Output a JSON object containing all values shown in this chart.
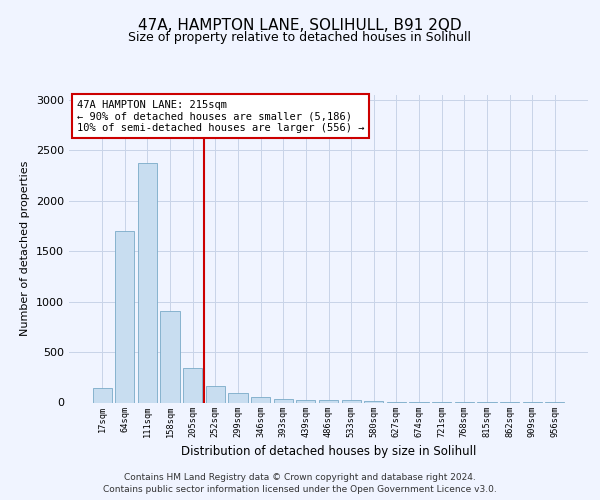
{
  "title": "47A, HAMPTON LANE, SOLIHULL, B91 2QD",
  "subtitle": "Size of property relative to detached houses in Solihull",
  "xlabel": "Distribution of detached houses by size in Solihull",
  "ylabel": "Number of detached properties",
  "categories": [
    "17sqm",
    "64sqm",
    "111sqm",
    "158sqm",
    "205sqm",
    "252sqm",
    "299sqm",
    "346sqm",
    "393sqm",
    "439sqm",
    "486sqm",
    "533sqm",
    "580sqm",
    "627sqm",
    "674sqm",
    "721sqm",
    "768sqm",
    "815sqm",
    "862sqm",
    "909sqm",
    "956sqm"
  ],
  "values": [
    140,
    1700,
    2380,
    910,
    340,
    165,
    95,
    55,
    35,
    28,
    25,
    20,
    18,
    5,
    3,
    3,
    2,
    2,
    2,
    1,
    1
  ],
  "bar_color": "#c8ddf0",
  "bar_edge_color": "#7aaac8",
  "property_line_x": 4.5,
  "annotation_text1": "47A HAMPTON LANE: 215sqm",
  "annotation_text2": "← 90% of detached houses are smaller (5,186)",
  "annotation_text3": "10% of semi-detached houses are larger (556) →",
  "annotation_box_color": "#ffffff",
  "annotation_box_edge": "#cc0000",
  "line_color": "#cc0000",
  "ylim": [
    0,
    3050
  ],
  "yticks": [
    0,
    500,
    1000,
    1500,
    2000,
    2500,
    3000
  ],
  "footer1": "Contains HM Land Registry data © Crown copyright and database right 2024.",
  "footer2": "Contains public sector information licensed under the Open Government Licence v3.0.",
  "background_color": "#f0f4ff",
  "grid_color": "#c8d4e8"
}
